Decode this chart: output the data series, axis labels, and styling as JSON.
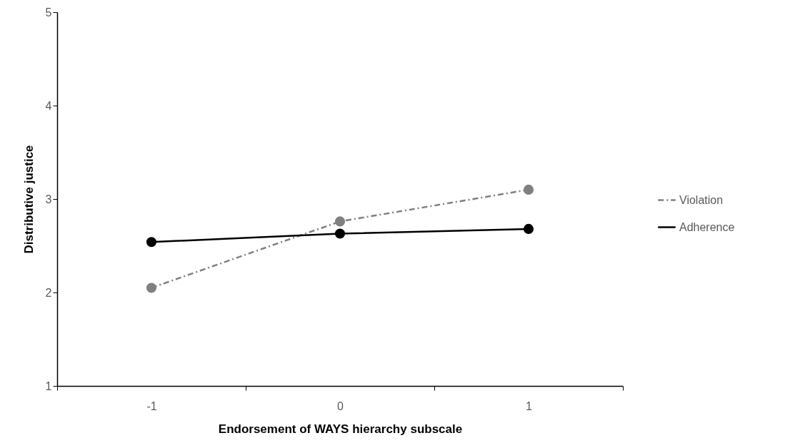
{
  "chart_data": {
    "type": "line",
    "xlabel": "Endorsement of WAYS hierarchy subscale",
    "ylabel": "Distributive justice",
    "categories": [
      "-1",
      "0",
      "1"
    ],
    "series": [
      {
        "name": "Violation",
        "color": "#808080",
        "line_style": "dashed",
        "values": [
          2.05,
          2.76,
          3.1
        ]
      },
      {
        "name": "Adherence",
        "color": "#000000",
        "line_style": "solid",
        "values": [
          2.54,
          2.63,
          2.68
        ]
      }
    ],
    "ylim": [
      1,
      5
    ],
    "yticks": [
      1,
      2,
      3,
      4,
      5
    ],
    "grid": false,
    "legend": "right",
    "marker": "circle"
  }
}
